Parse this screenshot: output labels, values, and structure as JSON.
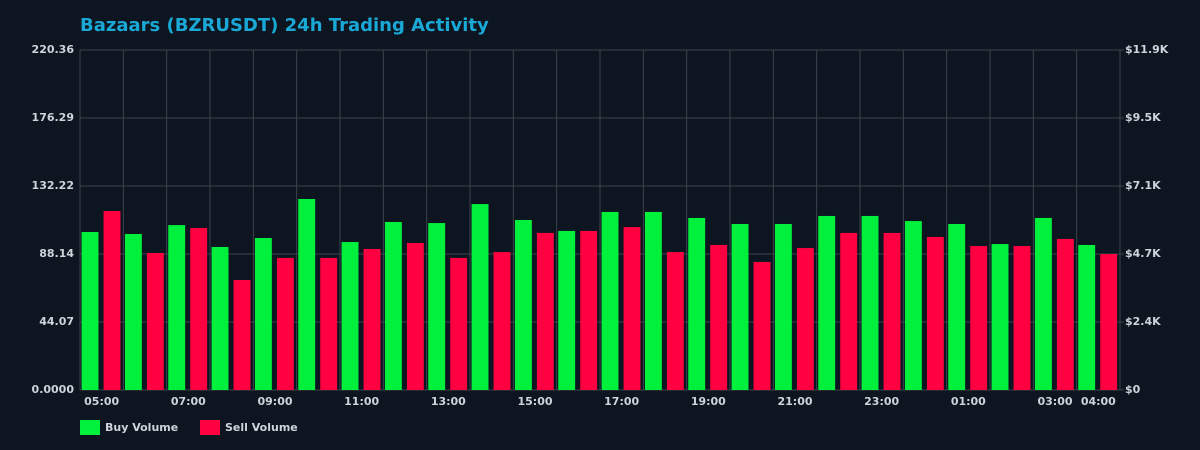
{
  "chart_data": {
    "type": "bar",
    "title": "Bazaars (BZRUSDT) 24h Trading Activity",
    "categories": [
      "05:00",
      null,
      "07:00",
      null,
      "09:00",
      null,
      "11:00",
      null,
      "13:00",
      null,
      "15:00",
      null,
      "17:00",
      null,
      "19:00",
      null,
      "21:00",
      null,
      "23:00",
      null,
      "01:00",
      null,
      "03:00",
      "04:00"
    ],
    "series": [
      {
        "name": "Buy Volume",
        "color": "#00f03c",
        "values": [
          102.4,
          101.1,
          106.9,
          92.7,
          98.5,
          123.8,
          95.9,
          108.9,
          108.2,
          120.5,
          110.2,
          103.1,
          115.4,
          115.4,
          111.5,
          107.6,
          107.6,
          112.8,
          112.8,
          109.5,
          107.6,
          94.6,
          111.5,
          94.0
        ]
      },
      {
        "name": "Sell Volume",
        "color": "#ff0040",
        "values": [
          116.0,
          88.8,
          105.0,
          71.3,
          85.6,
          85.6,
          91.4,
          95.3,
          85.6,
          89.4,
          101.8,
          103.1,
          105.6,
          89.4,
          94.0,
          83.0,
          92.0,
          101.8,
          101.8,
          99.2,
          93.3,
          93.3,
          97.9,
          88.1
        ]
      }
    ],
    "ylim": [
      0,
      220.36
    ],
    "yticks": [
      {
        "value": 0,
        "label": "0.0000"
      },
      44.07,
      88.14,
      132.22,
      176.29,
      220.36
    ],
    "y2lim": [
      0,
      11852
    ],
    "y2ticks": [
      {
        "value": 0,
        "label": "$0"
      },
      {
        "value": 2370.4,
        "label": "$2.4K"
      },
      {
        "value": 4740.8,
        "label": "$4.7K"
      },
      {
        "value": 7111.2,
        "label": "$7.1K"
      },
      {
        "value": 9481.6,
        "label": "$9.5K"
      },
      {
        "value": 11852,
        "label": "$11.9K"
      }
    ],
    "grid": true,
    "legend": "bottom-left"
  }
}
